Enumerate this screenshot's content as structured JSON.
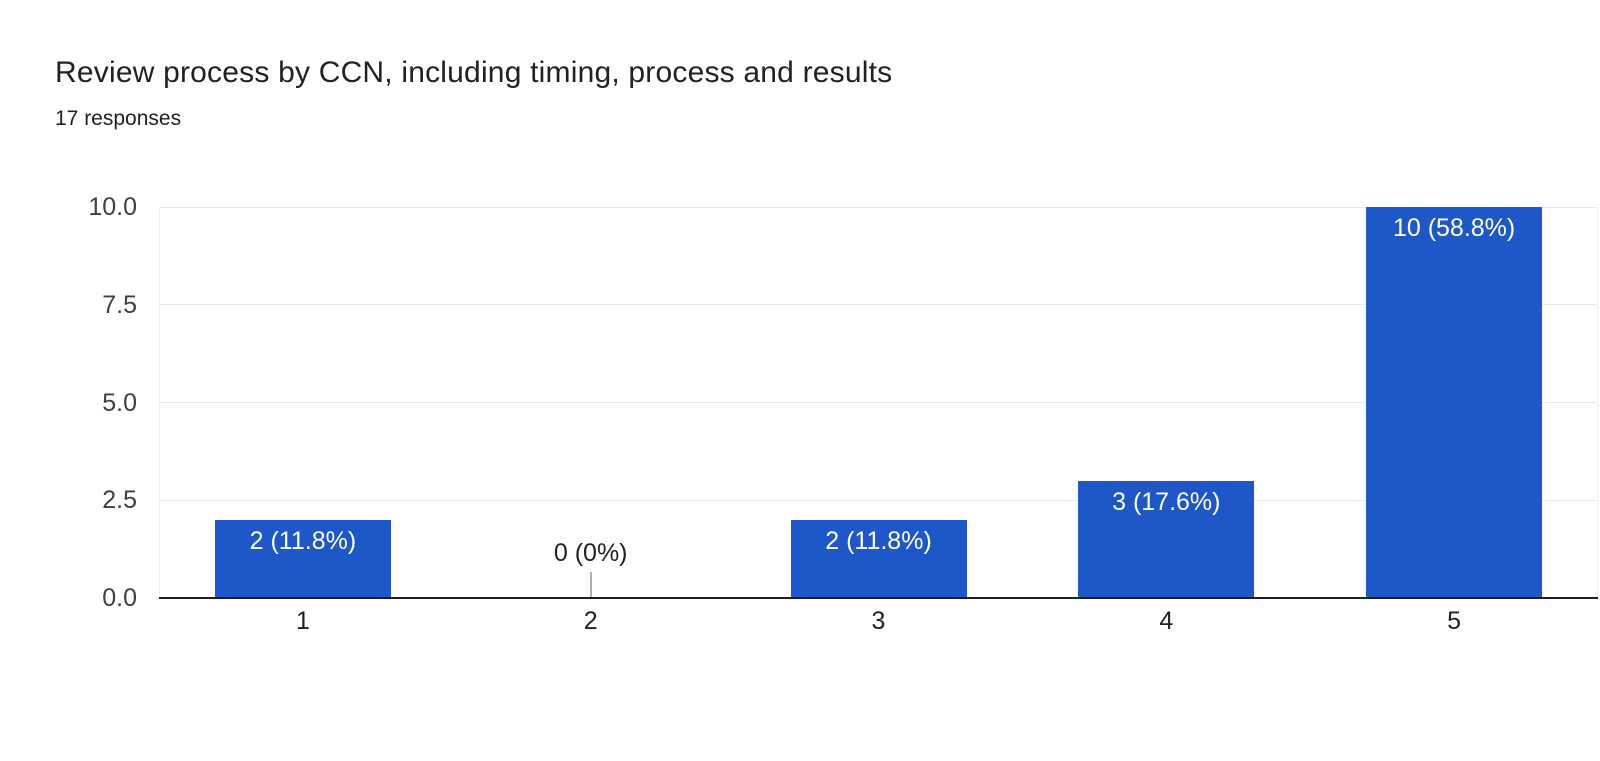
{
  "header": {
    "title": "Review process by CCN, including timing, process and results",
    "subtitle": "17 responses"
  },
  "chart_data": {
    "type": "bar",
    "title": "Review process by CCN, including timing, process and results",
    "subtitle": "17 responses",
    "categories": [
      "1",
      "2",
      "3",
      "4",
      "5"
    ],
    "values": [
      2,
      0,
      2,
      3,
      10
    ],
    "bar_labels": [
      "2 (11.8%)",
      "0 (0%)",
      "2 (11.8%)",
      "3 (17.6%)",
      "10 (58.8%)"
    ],
    "xlabel": "",
    "ylabel": "",
    "ylim": [
      0,
      10
    ],
    "ytick_values": [
      0,
      2.5,
      5,
      7.5,
      10
    ],
    "ytick_labels": [
      "0.0",
      "2.5",
      "5.0",
      "7.5",
      "10.0"
    ],
    "grid": true,
    "legend": "none",
    "colors": {
      "bar": "#1e57c7",
      "bar_label_inside": "#ffffff",
      "bar_label_outside": "#212121",
      "gridline": "#e9e9e9",
      "axis_line": "#1f1f1f",
      "ytick_text": "#3c4043",
      "xtick_text": "#212121",
      "zero_stem": "#aab0b6",
      "title_text": "#202124",
      "background": "#ffffff"
    }
  }
}
